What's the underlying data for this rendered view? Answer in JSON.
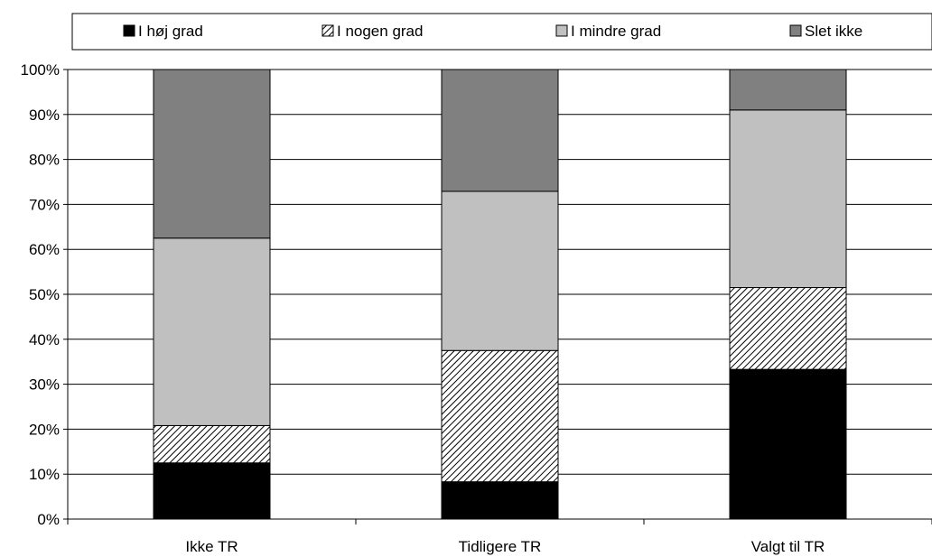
{
  "chart_data": {
    "type": "bar",
    "stacked": true,
    "categories": [
      "Ikke TR",
      "Tidligere TR",
      "Valgt til TR"
    ],
    "series": [
      {
        "name": "I høj grad",
        "values": [
          12.5,
          8.3,
          33.3
        ],
        "color": "#000000",
        "pattern": "solid"
      },
      {
        "name": "I nogen grad",
        "values": [
          8.3,
          29.2,
          18.2
        ],
        "color": "#ffffff",
        "pattern": "diagonal-hatch"
      },
      {
        "name": "I mindre grad",
        "values": [
          41.7,
          35.4,
          39.5
        ],
        "color": "#c0c0c0",
        "pattern": "solid"
      },
      {
        "name": "Slet ikke",
        "values": [
          37.5,
          27.1,
          9.0
        ],
        "color": "#808080",
        "pattern": "solid"
      }
    ],
    "y_ticks": [
      "0%",
      "10%",
      "20%",
      "30%",
      "40%",
      "50%",
      "60%",
      "70%",
      "80%",
      "90%",
      "100%"
    ],
    "ylim": [
      0,
      100
    ],
    "grid": true,
    "legend_position": "top"
  }
}
